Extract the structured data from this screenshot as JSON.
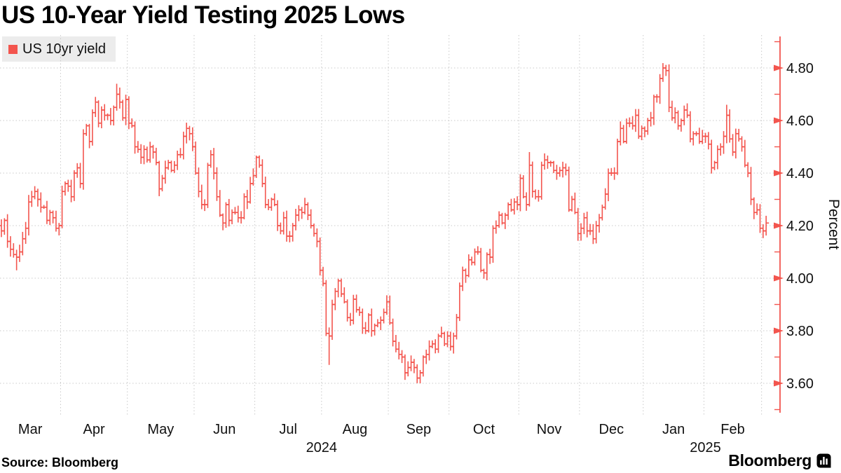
{
  "title": "US 10-Year Yield Testing 2025 Lows",
  "legend": {
    "label": "US 10yr yield"
  },
  "source_note": "Source: Bloomberg",
  "branding": {
    "wordmark": "Bloomberg",
    "logo_icon": "bloomberg-chart-mark"
  },
  "colors": {
    "series": "#f3554e",
    "axis": "#f3554e",
    "grid": "#c9c9c9",
    "legend_bg": "#ececec",
    "text": "#111111",
    "title_text": "#000000"
  },
  "chart_data": {
    "type": "ohlc-bars",
    "title": "US 10-Year Yield Testing 2025 Lows",
    "series_name": "US 10yr yield",
    "xlabel": "",
    "ylabel": "Percent",
    "grid": "dotted",
    "legend_position": "top-left",
    "y_axis": {
      "side": "right",
      "range_shown": [
        3.49,
        4.93
      ],
      "major_ticks": [
        {
          "value": 4.8,
          "label": "4.80"
        },
        {
          "value": 4.6,
          "label": "4.60"
        },
        {
          "value": 4.4,
          "label": "4.40"
        },
        {
          "value": 4.2,
          "label": "4.20"
        },
        {
          "value": 4.0,
          "label": "4.00"
        },
        {
          "value": 3.8,
          "label": "3.80"
        },
        {
          "value": 3.6,
          "label": "3.60"
        }
      ],
      "minor_tick_values": [
        4.9,
        4.7,
        4.5,
        4.3,
        4.1,
        3.9,
        3.7,
        3.5
      ]
    },
    "x_axis": {
      "year_labels": [
        {
          "label": "2024",
          "from_month": 0,
          "to_month": 9
        },
        {
          "label": "2025",
          "from_month": 10,
          "to_month": 12
        }
      ]
    },
    "months": [
      {
        "label": "Mar",
        "days": [
          4.18,
          4.22,
          4.14,
          4.11,
          4.09,
          4.08,
          4.1,
          4.15,
          4.19,
          4.29,
          4.31,
          4.33,
          4.3,
          4.27,
          4.27,
          4.22,
          4.25,
          4.23,
          4.19,
          4.2
        ]
      },
      {
        "label": "Apr",
        "days": [
          4.33,
          4.36,
          4.35,
          4.31,
          4.4,
          4.42,
          4.36,
          4.55,
          4.58,
          4.52,
          4.63,
          4.67,
          4.59,
          4.64,
          4.62,
          4.62,
          4.6,
          4.65,
          4.7,
          4.67,
          4.61,
          4.68
        ]
      },
      {
        "label": "May",
        "days": [
          4.59,
          4.58,
          4.5,
          4.49,
          4.46,
          4.49,
          4.45,
          4.5,
          4.48,
          4.44,
          4.34,
          4.38,
          4.42,
          4.44,
          4.41,
          4.43,
          4.47,
          4.47,
          4.54,
          4.57,
          4.55,
          4.5
        ]
      },
      {
        "label": "Jun",
        "days": [
          4.4,
          4.33,
          4.28,
          4.28,
          4.43,
          4.47,
          4.4,
          4.31,
          4.24,
          4.21,
          4.28,
          4.22,
          4.25,
          4.25,
          4.23,
          4.23,
          4.31,
          4.29,
          4.36,
          4.39
        ]
      },
      {
        "label": "Jul",
        "days": [
          4.46,
          4.43,
          4.36,
          4.28,
          4.27,
          4.3,
          4.28,
          4.2,
          4.18,
          4.23,
          4.16,
          4.16,
          4.2,
          4.24,
          4.26,
          4.25,
          4.28,
          4.24,
          4.2,
          4.17,
          4.14,
          4.03
        ]
      },
      {
        "label": "Aug",
        "days": [
          3.98,
          3.79,
          3.78,
          3.9,
          3.95,
          3.99,
          3.94,
          3.91,
          3.85,
          3.84,
          3.92,
          3.88,
          3.87,
          3.81,
          3.8,
          3.86,
          3.8,
          3.82,
          3.83,
          3.84,
          3.87,
          3.91
        ]
      },
      {
        "label": "Sep",
        "days": [
          3.83,
          3.76,
          3.73,
          3.71,
          3.7,
          3.64,
          3.66,
          3.68,
          3.66,
          3.62,
          3.64,
          3.7,
          3.71,
          3.74,
          3.75,
          3.73,
          3.78,
          3.79,
          3.75,
          3.78
        ]
      },
      {
        "label": "Oct",
        "days": [
          3.74,
          3.78,
          3.85,
          3.97,
          4.03,
          4.01,
          4.07,
          4.06,
          4.1,
          4.1,
          4.03,
          4.02,
          4.09,
          4.08,
          4.19,
          4.2,
          4.24,
          4.21,
          4.24,
          4.28,
          4.26,
          4.29,
          4.28
        ]
      },
      {
        "label": "Nov",
        "days": [
          4.38,
          4.31,
          4.28,
          4.43,
          4.33,
          4.31,
          4.31,
          4.43,
          4.45,
          4.44,
          4.44,
          4.41,
          4.4,
          4.41,
          4.42,
          4.41,
          4.26,
          4.3,
          4.25,
          4.17
        ]
      },
      {
        "label": "Dec",
        "days": [
          4.19,
          4.23,
          4.18,
          4.18,
          4.15,
          4.2,
          4.23,
          4.27,
          4.32,
          4.4,
          4.4,
          4.4,
          4.52,
          4.57,
          4.52,
          4.59,
          4.59,
          4.58,
          4.62,
          4.54,
          4.57
        ]
      },
      {
        "label": "Jan",
        "days": [
          4.56,
          4.6,
          4.61,
          4.69,
          4.69,
          4.76,
          4.8,
          4.79,
          4.65,
          4.61,
          4.63,
          4.58,
          4.6,
          4.64,
          4.62,
          4.53,
          4.55,
          4.55,
          4.52,
          4.54
        ]
      },
      {
        "label": "Feb",
        "days": [
          4.54,
          4.51,
          4.42,
          4.44,
          4.49,
          4.5,
          4.54,
          4.62,
          4.53,
          4.48,
          4.55,
          4.53,
          4.5,
          4.43,
          4.4,
          4.3,
          4.25,
          4.26,
          4.19
        ]
      },
      {
        "label": "",
        "days": [
          4.18,
          4.21
        ]
      }
    ],
    "intraday_extremes": [
      {
        "month": 0,
        "day": 5,
        "low": 4.03
      },
      {
        "month": 1,
        "day": 18,
        "high": 4.74
      },
      {
        "month": 5,
        "day": 2,
        "low": 3.67
      },
      {
        "month": 6,
        "day": 10,
        "low": 3.6
      },
      {
        "month": 8,
        "day": 3,
        "high": 4.48
      },
      {
        "month": 9,
        "day": 4,
        "low": 4.13
      },
      {
        "month": 10,
        "day": 6,
        "high": 4.81
      },
      {
        "month": 11,
        "day": 7,
        "high": 4.66
      }
    ]
  }
}
